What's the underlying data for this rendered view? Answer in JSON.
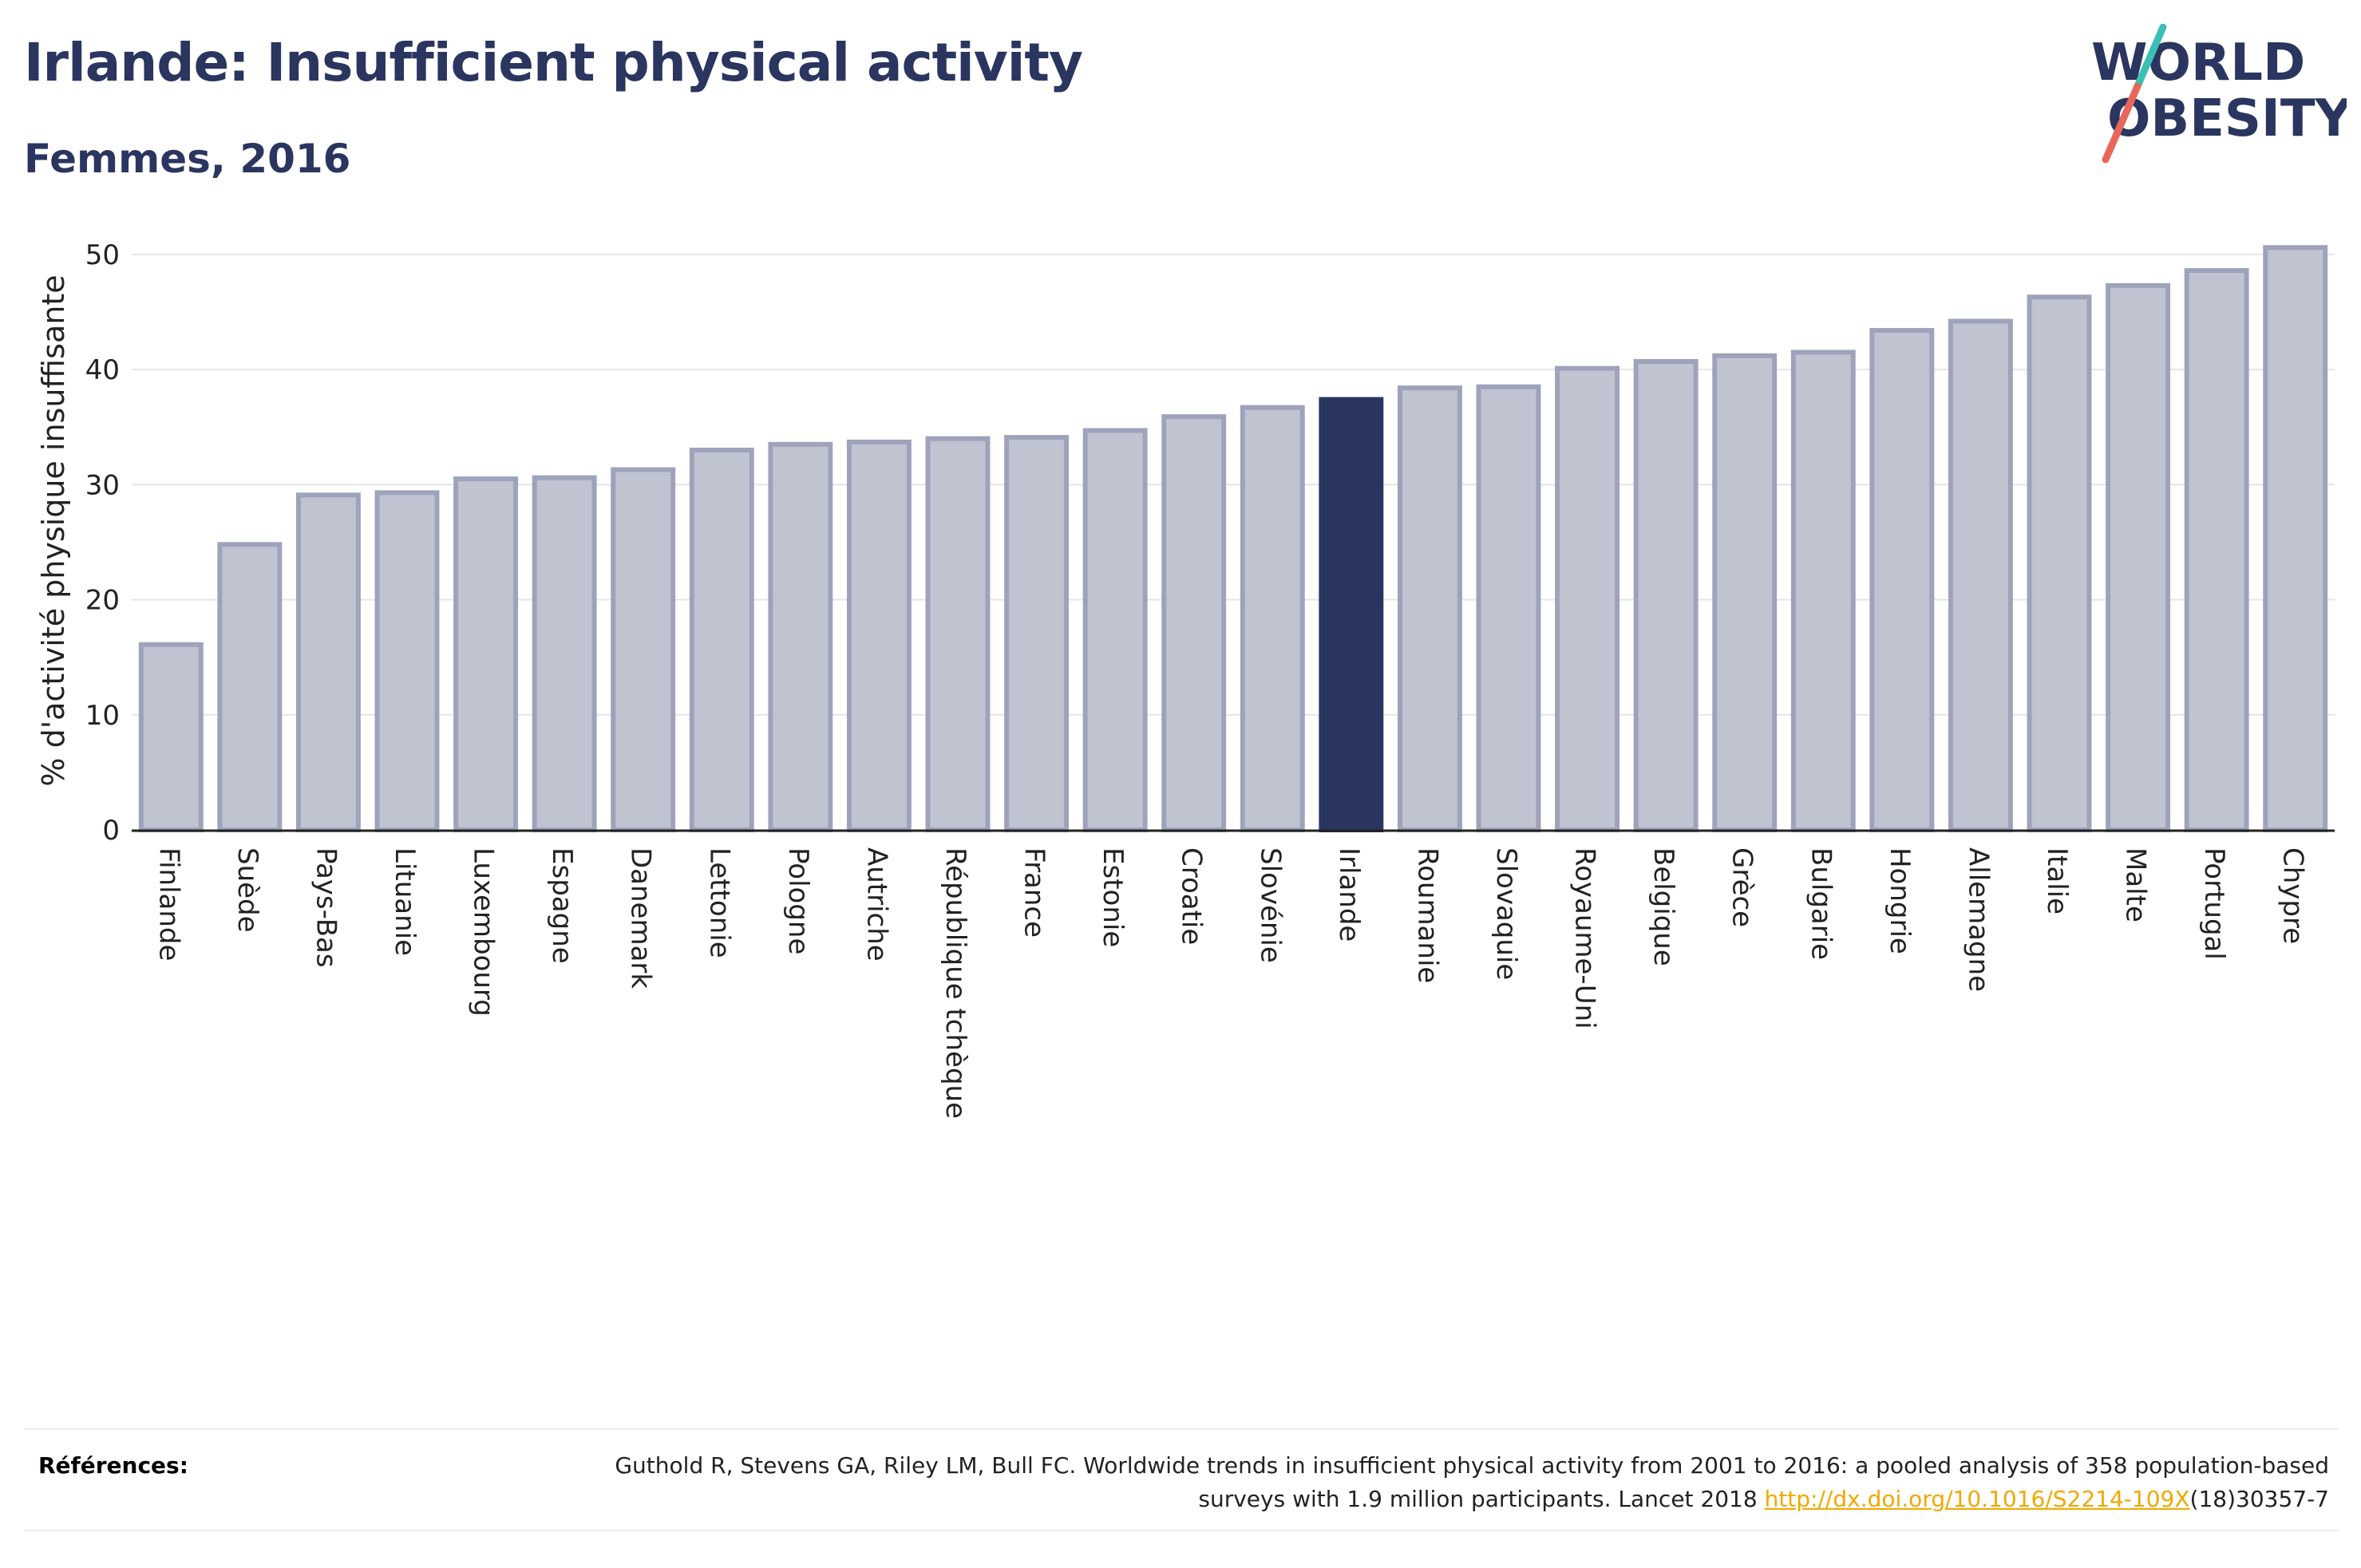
{
  "title": "Irlande: Insufficient physical activity",
  "subtitle": "Femmes, 2016",
  "logo": {
    "line1": "WORLD",
    "line2": "OBESITY",
    "colors": {
      "text": "#2a3560",
      "slash_top": "#3bbfb5",
      "slash_bottom": "#e8675a"
    }
  },
  "colors": {
    "bar": "#c0c3d0",
    "bar_border": "#9ea3bb",
    "highlight": "#2a3560",
    "grid": "#e6e6e6",
    "axis": "#222222"
  },
  "chart_data": {
    "type": "bar",
    "title": "Irlande: Insufficient physical activity",
    "subtitle": "Femmes, 2016",
    "ylabel": "% d'activité physique insuffisante",
    "xlabel": "",
    "ylim": [
      0,
      52
    ],
    "yticks": [
      0,
      10,
      20,
      30,
      40,
      50
    ],
    "grid": true,
    "highlight": "Irlande",
    "categories": [
      "Finlande",
      "Suède",
      "Pays-Bas",
      "Lituanie",
      "Luxembourg",
      "Espagne",
      "Danemark",
      "Lettonie",
      "Pologne",
      "Autriche",
      "République tchèque",
      "France",
      "Estonie",
      "Croatie",
      "Slovénie",
      "Irlande",
      "Roumanie",
      "Slovaquie",
      "Royaume-Uni",
      "Belgique",
      "Grèce",
      "Bulgarie",
      "Hongrie",
      "Allemagne",
      "Italie",
      "Malte",
      "Portugal",
      "Chypre"
    ],
    "values": [
      16.1,
      24.8,
      29.1,
      29.3,
      30.5,
      30.6,
      31.3,
      33.0,
      33.5,
      33.7,
      34.0,
      34.1,
      34.7,
      35.9,
      36.7,
      37.4,
      38.4,
      38.5,
      40.1,
      40.7,
      41.2,
      41.5,
      43.4,
      44.2,
      46.3,
      47.3,
      48.6,
      50.6
    ]
  },
  "references": {
    "label": "Références:",
    "text_before": "Guthold R, Stevens GA, Riley LM, Bull FC. Worldwide trends in insufficient physical activity from 2001 to 2016: a pooled analysis of 358 population-based surveys with 1.9 million participants. Lancet 2018 ",
    "link": "http://dx.doi.org/10.1016/S2214-109X",
    "text_after": "(18)30357-7"
  }
}
